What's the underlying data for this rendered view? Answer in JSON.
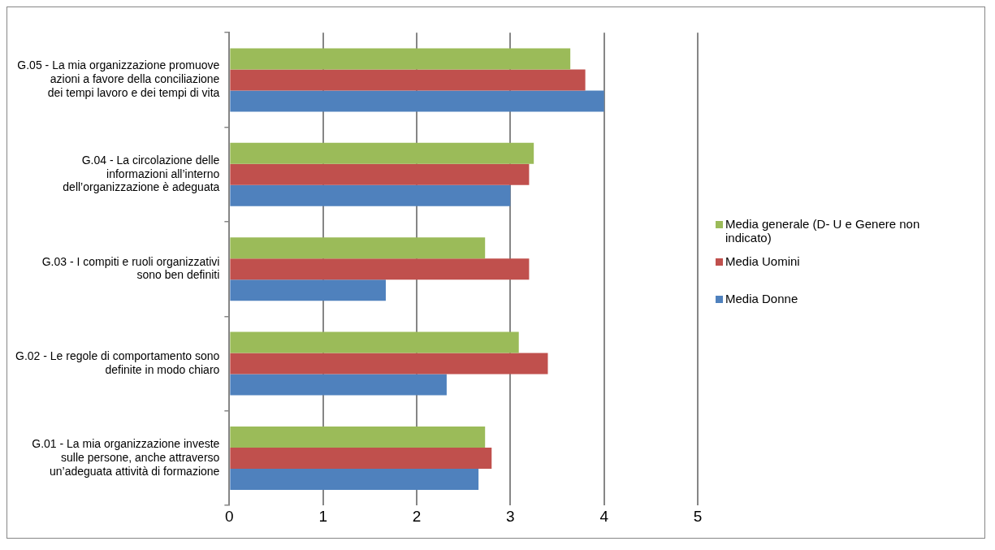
{
  "chart_data": {
    "type": "bar",
    "orientation": "horizontal",
    "categories": [
      "G.05 - La mia organizzazione promuove azioni a favore della conciliazione dei tempi lavoro e dei tempi di vita",
      "G.04 - La circolazione delle informazioni all’interno dell’organizzazione è adeguata",
      "G.03 - I compiti e ruoli organizzativi sono ben definiti",
      "G.02 - Le regole di comportamento sono definite in modo chiaro",
      "G.01 - La mia organizzazione investe sulle persone, anche attraverso un’adeguata attività di formazione"
    ],
    "series": [
      {
        "name": "Media generale (D- U e Genere non indicato)",
        "color": "#9bbb59",
        "values": [
          3.64,
          3.25,
          2.73,
          3.09,
          2.73
        ]
      },
      {
        "name": "Media Uomini",
        "color": "#c0504d",
        "values": [
          3.8,
          3.2,
          3.2,
          3.4,
          2.8
        ]
      },
      {
        "name": "Media Donne",
        "color": "#4f81bd",
        "values": [
          4.0,
          3.0,
          1.67,
          2.32,
          2.66
        ]
      }
    ],
    "xlim": [
      0,
      5
    ],
    "xticks": [
      0,
      1,
      2,
      3,
      4,
      5
    ],
    "grid": "x",
    "legend": "right"
  }
}
